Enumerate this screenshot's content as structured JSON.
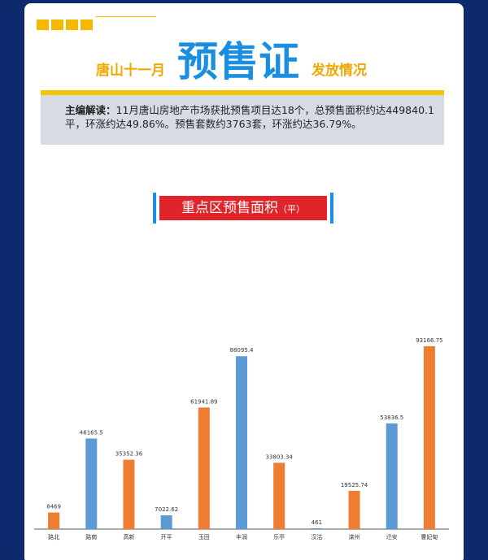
{
  "header": {
    "title_prefix": "唐山十一月",
    "title_main": "预售证",
    "title_suffix": "发放情况",
    "summary_label": "主编解读：",
    "summary": "11月唐山房地产市场获批预售项目达18个，总预售面积约达449840.1平，环涨约达49.86%。预售套数约3763套，环涨约达36.79%。"
  },
  "chart_data": {
    "type": "bar",
    "title": "重点区预售面积",
    "unit": "（平）",
    "categories": [
      "路北",
      "路南",
      "高新",
      "开平",
      "玉田",
      "丰润",
      "乐亭",
      "汉沽",
      "滦州",
      "迁安",
      "曹妃甸"
    ],
    "values": [
      8469,
      46165.5,
      35352.36,
      7022.62,
      61941.89,
      88095.4,
      33803.34,
      461,
      19525.74,
      53836.5,
      93166.75
    ],
    "colors": [
      "#ee7d31",
      "#5b9bd5",
      "#ee7d31",
      "#5b9bd5",
      "#ee7d31",
      "#5b9bd5",
      "#ee7d31",
      "#5b9bd5",
      "#ee7d31",
      "#5b9bd5",
      "#ee7d31"
    ]
  }
}
